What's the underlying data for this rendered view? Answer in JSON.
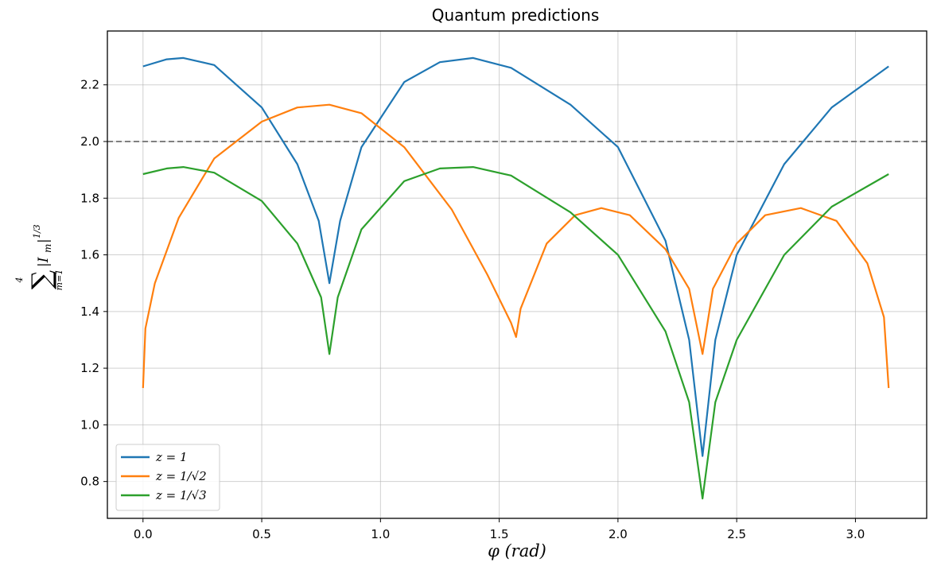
{
  "chart_data": {
    "type": "line",
    "title": "Quantum predictions",
    "xlabel": "φ (rad)",
    "ylabel": "∑ |I_m|^{1/3}",
    "ylabel_parts": {
      "sum_upper": "4",
      "sum_lower": "m=1",
      "body": "|I",
      "body_sub": "m",
      "body_close": "|",
      "exponent": "1/3"
    },
    "xlim": [
      -0.15,
      3.3
    ],
    "ylim": [
      0.67,
      2.39
    ],
    "xticks": [
      0.0,
      0.5,
      1.0,
      1.5,
      2.0,
      2.5,
      3.0
    ],
    "xtick_labels": [
      "0.0",
      "0.5",
      "1.0",
      "1.5",
      "2.0",
      "2.5",
      "3.0"
    ],
    "yticks": [
      0.8,
      1.0,
      1.2,
      1.4,
      1.6,
      1.8,
      2.0,
      2.2
    ],
    "ytick_labels": [
      "0.8",
      "1.0",
      "1.2",
      "1.4",
      "1.6",
      "1.8",
      "2.0",
      "2.2"
    ],
    "grid": true,
    "legend_position": "lower-left",
    "reference_line": {
      "y": 2.0,
      "style": "dashed",
      "color": "#808080"
    },
    "series": [
      {
        "name": "z = 1",
        "legend_label": "z = 1",
        "color": "#1f77b4",
        "x": [
          0.0,
          0.1,
          0.17,
          0.3,
          0.5,
          0.65,
          0.74,
          0.785,
          0.83,
          0.92,
          1.1,
          1.25,
          1.39,
          1.55,
          1.8,
          2.0,
          2.2,
          2.3,
          2.356,
          2.41,
          2.5,
          2.7,
          2.9,
          3.14
        ],
        "y": [
          2.265,
          2.29,
          2.295,
          2.27,
          2.12,
          1.92,
          1.72,
          1.5,
          1.72,
          1.98,
          2.21,
          2.28,
          2.295,
          2.26,
          2.13,
          1.98,
          1.65,
          1.3,
          0.89,
          1.3,
          1.6,
          1.92,
          2.12,
          2.265
        ]
      },
      {
        "name": "z = 1/√2",
        "legend_label": "z = 1/√2",
        "color": "#ff7f0e",
        "x": [
          0.0,
          0.01,
          0.05,
          0.15,
          0.3,
          0.5,
          0.65,
          0.785,
          0.92,
          1.1,
          1.3,
          1.45,
          1.55,
          1.571,
          1.59,
          1.7,
          1.82,
          1.93,
          2.05,
          2.2,
          2.3,
          2.356,
          2.4,
          2.5,
          2.62,
          2.77,
          2.92,
          3.05,
          3.12,
          3.14
        ],
        "y": [
          1.13,
          1.34,
          1.5,
          1.73,
          1.94,
          2.07,
          2.12,
          2.13,
          2.1,
          1.98,
          1.76,
          1.53,
          1.36,
          1.31,
          1.41,
          1.64,
          1.74,
          1.765,
          1.74,
          1.62,
          1.48,
          1.25,
          1.48,
          1.64,
          1.74,
          1.765,
          1.72,
          1.57,
          1.38,
          1.13
        ]
      },
      {
        "name": "z = 1/√3",
        "legend_label": "z = 1/√3",
        "color": "#2ca02c",
        "x": [
          0.0,
          0.1,
          0.17,
          0.3,
          0.5,
          0.65,
          0.75,
          0.785,
          0.82,
          0.92,
          1.1,
          1.25,
          1.39,
          1.55,
          1.8,
          2.0,
          2.2,
          2.3,
          2.356,
          2.41,
          2.5,
          2.7,
          2.9,
          3.14
        ],
        "y": [
          1.885,
          1.905,
          1.91,
          1.89,
          1.79,
          1.64,
          1.45,
          1.25,
          1.45,
          1.69,
          1.86,
          1.905,
          1.91,
          1.88,
          1.75,
          1.6,
          1.33,
          1.08,
          0.74,
          1.08,
          1.3,
          1.6,
          1.77,
          1.885
        ]
      }
    ]
  }
}
